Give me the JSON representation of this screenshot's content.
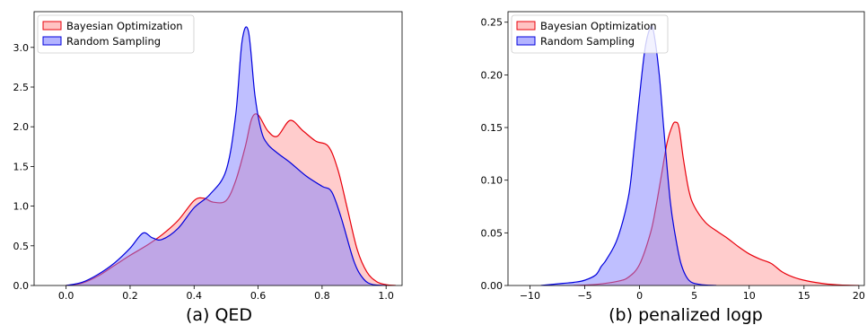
{
  "colors": {
    "bo_fill": "#ff9999",
    "bo_line": "#e8000b",
    "rs_fill": "#8080ff",
    "rs_line": "#0000dd"
  },
  "chart_data": [
    {
      "type": "area",
      "caption": "(a) QED",
      "legend": {
        "placement": "top-left",
        "entries": [
          "Bayesian Optimization",
          "Random Sampling"
        ]
      },
      "xlim": [
        -0.1,
        1.05
      ],
      "ylim": [
        0,
        3.45
      ],
      "xticks": [
        0.0,
        0.2,
        0.4,
        0.6,
        0.8,
        1.0
      ],
      "xtick_labels": [
        "0.0",
        "0.2",
        "0.4",
        "0.6",
        "0.8",
        "1.0"
      ],
      "yticks": [
        0.0,
        0.5,
        1.0,
        1.5,
        2.0,
        2.5,
        3.0
      ],
      "ytick_labels": [
        "0.0",
        "0.5",
        "1.0",
        "1.5",
        "2.0",
        "2.5",
        "3.0"
      ],
      "series": [
        {
          "name": "Bayesian Optimization",
          "x": [
            0.0,
            0.05,
            0.1,
            0.15,
            0.2,
            0.25,
            0.3,
            0.35,
            0.4,
            0.43,
            0.46,
            0.5,
            0.53,
            0.56,
            0.58,
            0.6,
            0.63,
            0.66,
            0.7,
            0.74,
            0.78,
            0.82,
            0.85,
            0.88,
            0.91,
            0.94,
            0.97,
            1.0,
            1.03
          ],
          "y": [
            0.0,
            0.03,
            0.12,
            0.25,
            0.38,
            0.5,
            0.64,
            0.82,
            1.07,
            1.1,
            1.05,
            1.07,
            1.32,
            1.75,
            2.1,
            2.15,
            1.95,
            1.88,
            2.08,
            1.95,
            1.82,
            1.75,
            1.45,
            0.95,
            0.45,
            0.17,
            0.05,
            0.01,
            0.0
          ]
        },
        {
          "name": "Random Sampling",
          "x": [
            0.0,
            0.05,
            0.1,
            0.15,
            0.2,
            0.24,
            0.27,
            0.3,
            0.35,
            0.4,
            0.45,
            0.5,
            0.53,
            0.55,
            0.57,
            0.59,
            0.61,
            0.63,
            0.66,
            0.7,
            0.75,
            0.8,
            0.83,
            0.86,
            0.9,
            0.93,
            0.96,
            1.0
          ],
          "y": [
            0.0,
            0.04,
            0.14,
            0.28,
            0.47,
            0.66,
            0.6,
            0.58,
            0.72,
            0.98,
            1.15,
            1.45,
            2.15,
            3.08,
            3.2,
            2.4,
            1.95,
            1.78,
            1.67,
            1.55,
            1.38,
            1.25,
            1.18,
            0.85,
            0.3,
            0.08,
            0.01,
            0.0
          ]
        }
      ]
    },
    {
      "type": "area",
      "caption": "(b) penalized logp",
      "legend": {
        "placement": "top-left",
        "entries": [
          "Bayesian Optimization",
          "Random Sampling"
        ]
      },
      "xlim": [
        -12,
        20.5
      ],
      "ylim": [
        0,
        0.26
      ],
      "xticks": [
        -10,
        -5,
        0,
        5,
        10,
        15,
        20
      ],
      "xtick_labels": [
        "−10",
        "−5",
        "0",
        "5",
        "10",
        "15",
        "20"
      ],
      "yticks": [
        0.0,
        0.05,
        0.1,
        0.15,
        0.2,
        0.25
      ],
      "ytick_labels": [
        "0.00",
        "0.05",
        "0.10",
        "0.15",
        "0.20",
        "0.25"
      ],
      "series": [
        {
          "name": "Bayesian Optimization",
          "x": [
            -6,
            -4,
            -2,
            -1,
            0,
            1,
            1.5,
            2,
            2.5,
            3,
            3.3,
            3.6,
            4,
            4.5,
            5,
            6,
            7,
            8,
            9,
            10,
            11,
            12,
            13,
            14,
            15,
            16,
            17,
            18,
            19,
            20
          ],
          "y": [
            0.0,
            0.001,
            0.004,
            0.008,
            0.02,
            0.05,
            0.075,
            0.105,
            0.135,
            0.152,
            0.155,
            0.15,
            0.12,
            0.09,
            0.075,
            0.06,
            0.052,
            0.045,
            0.037,
            0.03,
            0.025,
            0.021,
            0.013,
            0.008,
            0.005,
            0.003,
            0.0015,
            0.0007,
            0.0002,
            0.0
          ]
        },
        {
          "name": "Random Sampling",
          "x": [
            -9,
            -7,
            -6,
            -5,
            -4,
            -3.5,
            -3,
            -2,
            -1,
            -0.5,
            0,
            0.5,
            1,
            1.3,
            1.8,
            2.2,
            2.8,
            3.3,
            3.8,
            4.5,
            5.5,
            7
          ],
          "y": [
            0.0,
            0.002,
            0.003,
            0.005,
            0.01,
            0.018,
            0.025,
            0.045,
            0.085,
            0.13,
            0.18,
            0.225,
            0.245,
            0.24,
            0.2,
            0.15,
            0.08,
            0.045,
            0.02,
            0.005,
            0.001,
            0.0
          ]
        }
      ]
    }
  ]
}
